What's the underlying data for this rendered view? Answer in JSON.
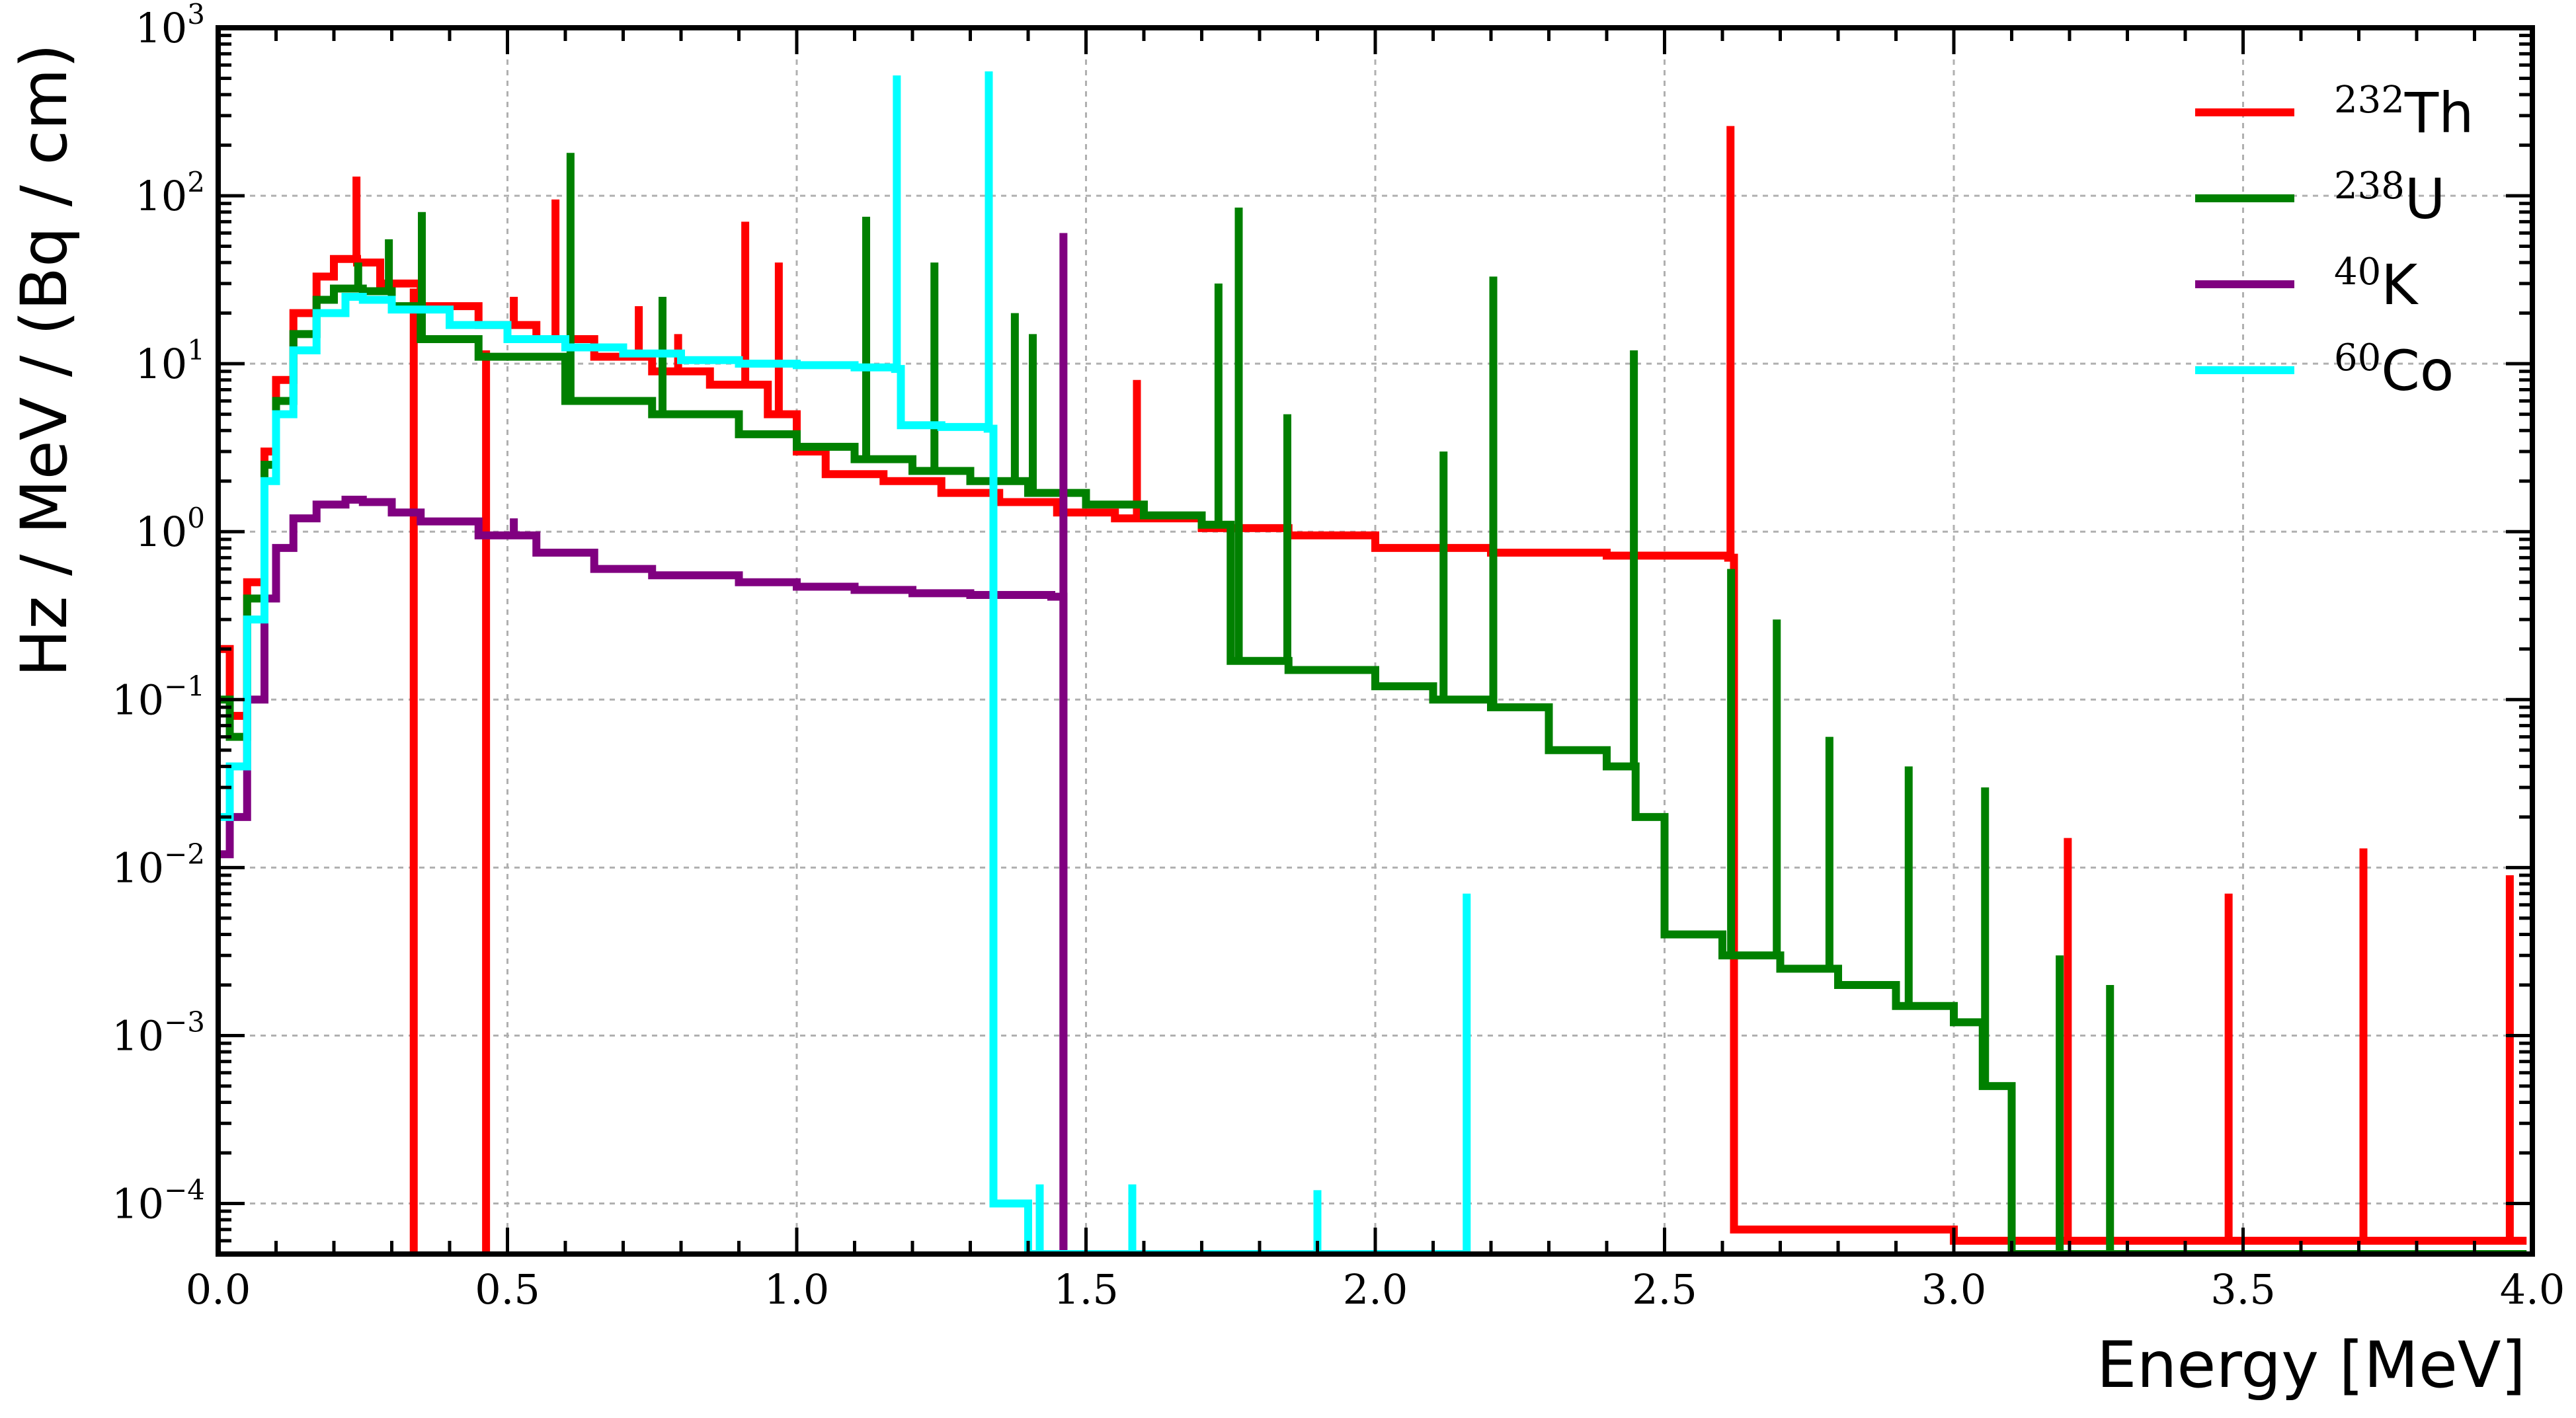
{
  "chart_data": {
    "type": "line",
    "xlabel": "Energy [MeV]",
    "ylabel": "Hz / MeV / (Bq / cm)",
    "xlim": [
      0.0,
      4.0
    ],
    "ylim": [
      5e-05,
      1000
    ],
    "yscale": "log",
    "grid": true,
    "legend_position": "top-right",
    "x_ticks": [
      "0.0",
      "0.5",
      "1.0",
      "1.5",
      "2.0",
      "2.5",
      "3.0",
      "3.5",
      "4.0"
    ],
    "y_ticks": [
      {
        "base": "10",
        "exp": "−4",
        "value": 0.0001
      },
      {
        "base": "10",
        "exp": "−3",
        "value": 0.001
      },
      {
        "base": "10",
        "exp": "−2",
        "value": 0.01
      },
      {
        "base": "10",
        "exp": "−1",
        "value": 0.1
      },
      {
        "base": "10",
        "exp": "0",
        "value": 1
      },
      {
        "base": "10",
        "exp": "1",
        "value": 10
      },
      {
        "base": "10",
        "exp": "2",
        "value": 100
      },
      {
        "base": "10",
        "exp": "3",
        "value": 1000
      }
    ],
    "series": [
      {
        "name": "Th",
        "mass": "232",
        "color": "#ff0000",
        "points": [
          [
            0.0,
            0.2
          ],
          [
            0.02,
            0.08
          ],
          [
            0.05,
            0.5
          ],
          [
            0.08,
            3
          ],
          [
            0.1,
            8
          ],
          [
            0.13,
            20
          ],
          [
            0.17,
            33
          ],
          [
            0.2,
            42
          ],
          [
            0.24,
            40
          ],
          [
            0.28,
            30
          ],
          [
            0.35,
            22
          ],
          [
            0.45,
            17
          ],
          [
            0.55,
            14
          ],
          [
            0.65,
            11
          ],
          [
            0.75,
            9
          ],
          [
            0.85,
            7.5
          ],
          [
            0.95,
            5
          ],
          [
            1.0,
            3
          ],
          [
            1.05,
            2.2
          ],
          [
            1.15,
            2
          ],
          [
            1.25,
            1.7
          ],
          [
            1.35,
            1.5
          ],
          [
            1.45,
            1.3
          ],
          [
            1.55,
            1.2
          ],
          [
            1.7,
            1.05
          ],
          [
            1.85,
            0.95
          ],
          [
            2.0,
            0.8
          ],
          [
            2.2,
            0.75
          ],
          [
            2.4,
            0.72
          ],
          [
            2.61,
            0.7
          ],
          [
            2.62,
            7e-05
          ],
          [
            3.0,
            6e-05
          ],
          [
            3.5,
            6e-05
          ],
          [
            3.99,
            6e-05
          ]
        ],
        "peaks": [
          [
            0.239,
            130
          ],
          [
            0.338,
            28
          ],
          [
            0.463,
            12
          ],
          [
            0.511,
            25
          ],
          [
            0.583,
            95
          ],
          [
            0.727,
            22
          ],
          [
            0.795,
            15
          ],
          [
            0.911,
            70
          ],
          [
            0.969,
            40
          ],
          [
            1.588,
            8
          ],
          [
            2.614,
            260
          ],
          [
            3.197,
            0.015
          ],
          [
            3.475,
            0.007
          ],
          [
            3.708,
            0.013
          ],
          [
            3.961,
            0.009
          ]
        ]
      },
      {
        "name": "U",
        "mass": "238",
        "color": "#008000",
        "points": [
          [
            0.0,
            0.1
          ],
          [
            0.02,
            0.06
          ],
          [
            0.05,
            0.4
          ],
          [
            0.08,
            2.5
          ],
          [
            0.1,
            6
          ],
          [
            0.13,
            15
          ],
          [
            0.17,
            24
          ],
          [
            0.2,
            28
          ],
          [
            0.25,
            27
          ],
          [
            0.3,
            22
          ],
          [
            0.35,
            14
          ],
          [
            0.45,
            11
          ],
          [
            0.6,
            6
          ],
          [
            0.75,
            5
          ],
          [
            0.9,
            3.8
          ],
          [
            1.0,
            3.2
          ],
          [
            1.1,
            2.7
          ],
          [
            1.2,
            2.3
          ],
          [
            1.3,
            2
          ],
          [
            1.4,
            1.7
          ],
          [
            1.5,
            1.45
          ],
          [
            1.6,
            1.25
          ],
          [
            1.7,
            1.1
          ],
          [
            1.75,
            0.17
          ],
          [
            1.85,
            0.15
          ],
          [
            2.0,
            0.12
          ],
          [
            2.1,
            0.1
          ],
          [
            2.2,
            0.09
          ],
          [
            2.3,
            0.05
          ],
          [
            2.4,
            0.04
          ],
          [
            2.45,
            0.02
          ],
          [
            2.5,
            0.004
          ],
          [
            2.6,
            0.003
          ],
          [
            2.7,
            0.0025
          ],
          [
            2.8,
            0.002
          ],
          [
            2.9,
            0.0015
          ],
          [
            3.0,
            0.0012
          ],
          [
            3.05,
            0.0005
          ],
          [
            3.1,
            5e-05
          ],
          [
            3.99,
            5e-05
          ]
        ],
        "peaks": [
          [
            0.242,
            40
          ],
          [
            0.295,
            55
          ],
          [
            0.352,
            80
          ],
          [
            0.609,
            180
          ],
          [
            0.768,
            25
          ],
          [
            1.12,
            75
          ],
          [
            1.238,
            40
          ],
          [
            1.377,
            20
          ],
          [
            1.408,
            15
          ],
          [
            1.729,
            30
          ],
          [
            1.764,
            85
          ],
          [
            1.848,
            5
          ],
          [
            2.118,
            3
          ],
          [
            2.204,
            33
          ],
          [
            2.447,
            12
          ],
          [
            2.615,
            0.6
          ],
          [
            2.694,
            0.3
          ],
          [
            2.785,
            0.06
          ],
          [
            2.922,
            0.04
          ],
          [
            3.054,
            0.03
          ],
          [
            3.183,
            0.003
          ],
          [
            3.27,
            0.002
          ]
        ]
      },
      {
        "name": "K",
        "mass": "40",
        "color": "#800080",
        "points": [
          [
            0.0,
            0.012
          ],
          [
            0.02,
            0.02
          ],
          [
            0.05,
            0.1
          ],
          [
            0.08,
            0.4
          ],
          [
            0.1,
            0.8
          ],
          [
            0.13,
            1.2
          ],
          [
            0.17,
            1.45
          ],
          [
            0.22,
            1.55
          ],
          [
            0.25,
            1.5
          ],
          [
            0.3,
            1.3
          ],
          [
            0.35,
            1.15
          ],
          [
            0.45,
            0.95
          ],
          [
            0.55,
            0.75
          ],
          [
            0.65,
            0.6
          ],
          [
            0.75,
            0.55
          ],
          [
            0.9,
            0.5
          ],
          [
            1.0,
            0.47
          ],
          [
            1.1,
            0.45
          ],
          [
            1.2,
            0.43
          ],
          [
            1.3,
            0.42
          ],
          [
            1.44,
            0.41
          ],
          [
            1.461,
            5e-05
          ]
        ],
        "peaks": [
          [
            0.511,
            1.2
          ],
          [
            1.461,
            60
          ]
        ]
      },
      {
        "name": "Co",
        "mass": "60",
        "color": "#00ffff",
        "points": [
          [
            0.0,
            0.02
          ],
          [
            0.02,
            0.04
          ],
          [
            0.05,
            0.3
          ],
          [
            0.08,
            2
          ],
          [
            0.1,
            5
          ],
          [
            0.13,
            12
          ],
          [
            0.17,
            20
          ],
          [
            0.22,
            25
          ],
          [
            0.25,
            24
          ],
          [
            0.3,
            21
          ],
          [
            0.4,
            17
          ],
          [
            0.5,
            14
          ],
          [
            0.6,
            12.5
          ],
          [
            0.7,
            11.5
          ],
          [
            0.8,
            10.5
          ],
          [
            0.9,
            10
          ],
          [
            1.0,
            9.8
          ],
          [
            1.1,
            9.5
          ],
          [
            1.17,
            9.3
          ],
          [
            1.18,
            4.3
          ],
          [
            1.25,
            4.2
          ],
          [
            1.33,
            4.1
          ],
          [
            1.34,
            0.0001
          ],
          [
            1.4,
            5e-05
          ],
          [
            2.16,
            5e-05
          ]
        ],
        "peaks": [
          [
            1.173,
            520
          ],
          [
            1.332,
            550
          ],
          [
            1.42,
            0.00013
          ],
          [
            1.58,
            0.00013
          ],
          [
            1.9,
            0.00012
          ],
          [
            2.158,
            0.007
          ]
        ]
      }
    ]
  }
}
